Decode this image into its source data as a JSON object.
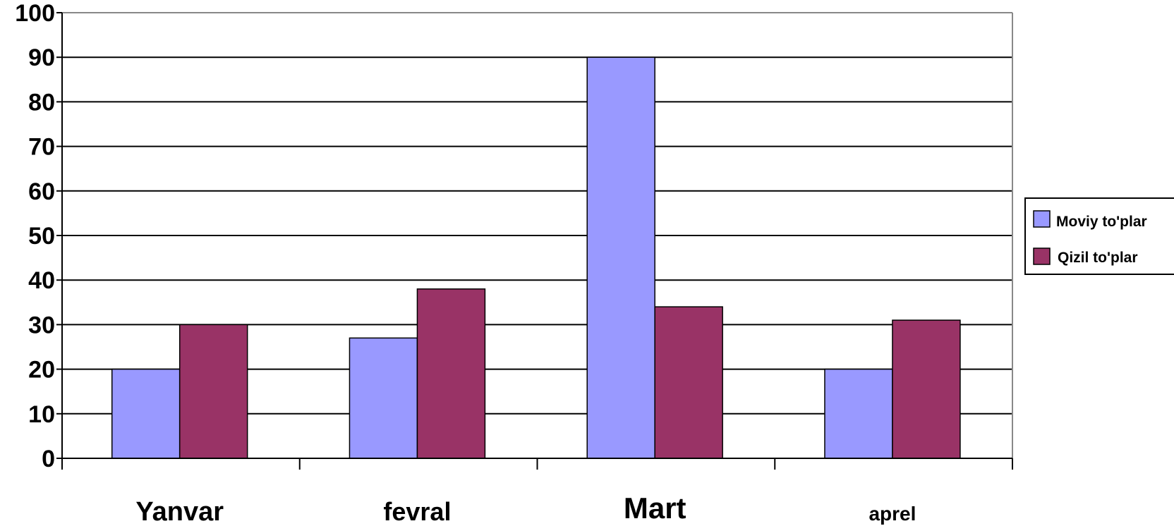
{
  "chart_data": {
    "type": "bar",
    "categories": [
      "Yanvar",
      "fevral",
      "Mart",
      "aprel"
    ],
    "series": [
      {
        "name": "Moviy to'plar",
        "values": [
          20,
          27,
          90,
          20
        ],
        "color": "#9999ff"
      },
      {
        "name": "Qizil to'plar",
        "values": [
          30,
          38,
          34,
          31
        ],
        "color": "#993366"
      }
    ],
    "ylim": [
      0,
      100
    ],
    "yticks": [
      "0",
      "10",
      "20",
      "30",
      "40",
      "50",
      "60",
      "70",
      "80",
      "90",
      "100"
    ],
    "grid": true,
    "legend": "right",
    "xlabel": "",
    "ylabel": ""
  }
}
